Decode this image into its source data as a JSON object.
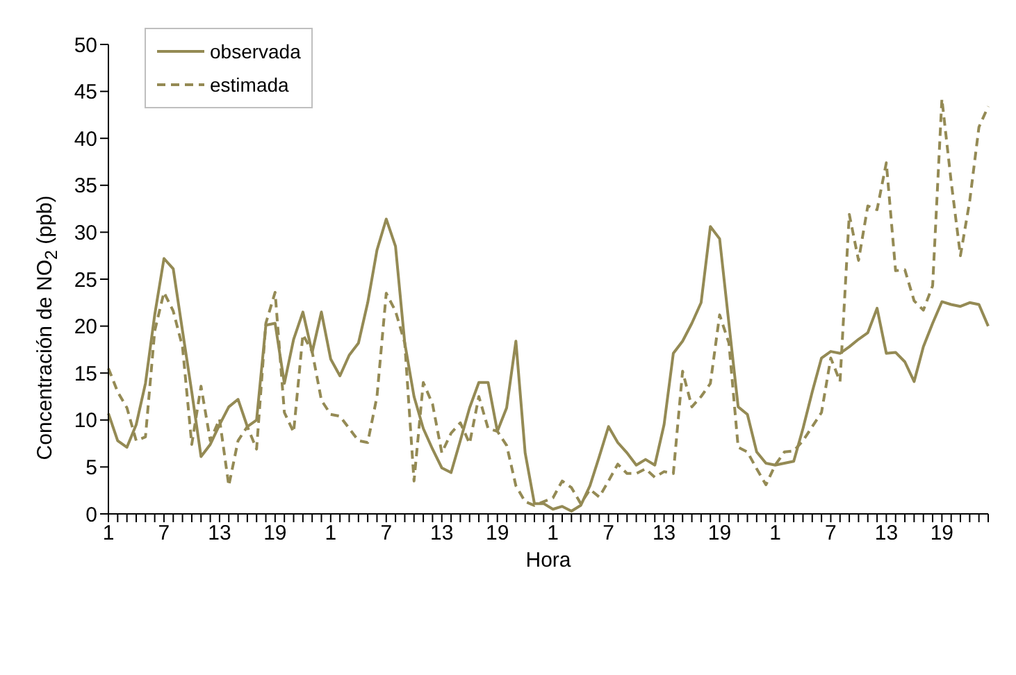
{
  "chart_data": {
    "type": "line",
    "xlabel": "Hora",
    "ylabel": "Concentración de NO$_{2}$ (ppb)",
    "categories": [
      "1",
      null,
      null,
      null,
      null,
      null,
      "7",
      null,
      null,
      null,
      null,
      null,
      "13",
      null,
      null,
      null,
      null,
      null,
      "19",
      null,
      null,
      null,
      null,
      null,
      "1",
      null,
      null,
      null,
      null,
      null,
      "7",
      null,
      null,
      null,
      null,
      null,
      "13",
      null,
      null,
      null,
      null,
      null,
      "19",
      null,
      null,
      null,
      null,
      null,
      "1",
      null,
      null,
      null,
      null,
      null,
      "7",
      null,
      null,
      null,
      null,
      null,
      "13",
      null,
      null,
      null,
      null,
      null,
      "19",
      null,
      null,
      null,
      null,
      null,
      "1",
      null,
      null,
      null,
      null,
      null,
      "7",
      null,
      null,
      null,
      null,
      null,
      "13",
      null,
      null,
      null,
      null,
      null,
      "19",
      null,
      null,
      null,
      null,
      null
    ],
    "series": [
      {
        "name": "observada",
        "color": "#948a54",
        "line_style": "solid",
        "values": [
          10.7,
          7.8,
          7.1,
          9.5,
          13.9,
          21.2,
          27.2,
          26.1,
          19.5,
          13,
          6.1,
          7.4,
          9.5,
          11.4,
          12.2,
          9.3,
          10,
          20.1,
          20.3,
          13.9,
          18.6,
          21.5,
          17.2,
          21.5,
          16.5,
          14.7,
          16.9,
          18.2,
          22.5,
          28.1,
          31.4,
          28.5,
          18.2,
          12.5,
          9.1,
          6.9,
          4.9,
          4.4,
          7.8,
          11.3,
          14,
          14,
          8.8,
          11.3,
          18.4,
          6.5,
          1.1,
          1.1,
          0.5,
          0.8,
          0.3,
          0.9,
          3,
          6.1,
          9.3,
          7.6,
          6.5,
          5.2,
          5.8,
          5.2,
          9.5,
          17.1,
          18.4,
          20.3,
          22.5,
          30.6,
          29.3,
          20.3,
          11.4,
          10.6,
          6.6,
          5.4,
          5.2,
          5.4,
          5.6,
          9.1,
          13,
          16.6,
          17.3,
          17.1,
          17.8,
          18.6,
          19.3,
          21.9,
          17.1,
          17.2,
          16.2,
          14.1,
          17.8,
          20.3,
          22.6,
          22.3,
          22.1,
          22.5,
          22.3,
          20
        ]
      },
      {
        "name": "estimada",
        "color": "#948a54",
        "line_style": "dashed",
        "values": [
          15.5,
          13,
          11.3,
          7.8,
          8.2,
          19.5,
          23.6,
          21.6,
          17.8,
          7.4,
          13.6,
          7.8,
          10.1,
          3,
          7.8,
          9.3,
          6.9,
          20.3,
          23.6,
          10.8,
          8.7,
          19.1,
          17.3,
          12.1,
          10.6,
          10.4,
          9.1,
          7.8,
          7.6,
          12.5,
          23.5,
          21.6,
          18.2,
          3.5,
          14,
          11.7,
          6.5,
          8.6,
          9.7,
          7.5,
          12.5,
          9.1,
          8.8,
          7.3,
          3,
          1.3,
          0.9,
          1.3,
          1.7,
          3.5,
          2.8,
          1.1,
          2.6,
          1.8,
          3.5,
          5.3,
          4.3,
          4.3,
          4.8,
          3.9,
          4.5,
          4.3,
          15.2,
          11.4,
          12.5,
          13.9,
          21.2,
          18.2,
          7.1,
          6.6,
          4.8,
          3.1,
          5.2,
          6.6,
          6.7,
          7.8,
          9.3,
          10.8,
          16.6,
          14.1,
          31.9,
          27,
          32.8,
          32.4,
          37.4,
          25.9,
          26,
          22.7,
          21.7,
          24.3,
          44.2,
          35.4,
          27.5,
          33.3,
          41.2,
          43.4
        ]
      }
    ],
    "ylim": [
      0,
      50
    ],
    "yticks": [
      0,
      5,
      10,
      15,
      20,
      25,
      30,
      35,
      40,
      45,
      50
    ],
    "grid": false,
    "legend": "top left",
    "marker": "none"
  }
}
